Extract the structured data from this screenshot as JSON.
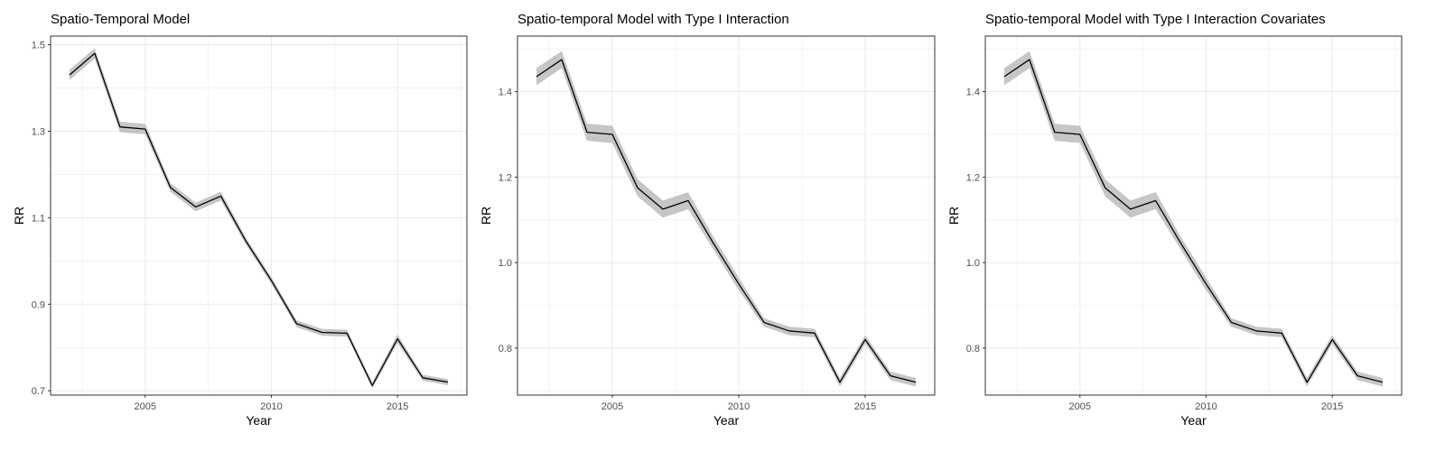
{
  "chart_data": [
    {
      "type": "line",
      "title": "Spatio-Temporal Model",
      "xlabel": "Year",
      "ylabel": "RR",
      "xlim": [
        2001.25,
        2017.75
      ],
      "ylim": [
        0.69,
        1.52
      ],
      "x_ticks": [
        2005,
        2010,
        2015
      ],
      "x_tick_labels": [
        "2005",
        "2010",
        "2015"
      ],
      "y_ticks": [
        0.7,
        0.9,
        1.1,
        1.3,
        1.5
      ],
      "y_tick_labels": [
        "0.7",
        "0.9",
        "1.1",
        "1.3",
        "1.5"
      ],
      "grid": true,
      "x": [
        2002,
        2003,
        2004,
        2005,
        2006,
        2007,
        2008,
        2009,
        2010,
        2011,
        2012,
        2013,
        2014,
        2015,
        2016,
        2017
      ],
      "series": [
        {
          "values": [
            1.43,
            1.48,
            1.31,
            1.305,
            1.17,
            1.125,
            1.15,
            1.045,
            0.955,
            0.855,
            0.835,
            0.833,
            0.712,
            0.82,
            0.73,
            0.72
          ],
          "lower": [
            1.418,
            1.468,
            1.298,
            1.293,
            1.16,
            1.115,
            1.14,
            1.037,
            0.947,
            0.847,
            0.827,
            0.825,
            0.706,
            0.81,
            0.723,
            0.713
          ],
          "upper": [
            1.442,
            1.492,
            1.322,
            1.317,
            1.18,
            1.135,
            1.16,
            1.053,
            0.963,
            0.863,
            0.843,
            0.841,
            0.72,
            0.83,
            0.737,
            0.727
          ]
        }
      ],
      "colors": {
        "line": "#000000",
        "band": "#b3b3b3",
        "grid": "#ebebeb",
        "frame": "#333333"
      }
    },
    {
      "type": "line",
      "title": "Spatio-temporal Model with Type I Interaction",
      "xlabel": "Year",
      "ylabel": "RR",
      "xlim": [
        2001.25,
        2017.75
      ],
      "ylim": [
        0.69,
        1.53
      ],
      "x_ticks": [
        2005,
        2010,
        2015
      ],
      "x_tick_labels": [
        "2005",
        "2010",
        "2015"
      ],
      "y_ticks": [
        0.8,
        1.0,
        1.2,
        1.4
      ],
      "y_tick_labels": [
        "0.8",
        "1.0",
        "1.2",
        "1.4"
      ],
      "grid": true,
      "x": [
        2002,
        2003,
        2004,
        2005,
        2006,
        2007,
        2008,
        2009,
        2010,
        2011,
        2012,
        2013,
        2014,
        2015,
        2016,
        2017
      ],
      "series": [
        {
          "values": [
            1.435,
            1.475,
            1.305,
            1.3,
            1.175,
            1.125,
            1.145,
            1.045,
            0.95,
            0.86,
            0.84,
            0.835,
            0.72,
            0.82,
            0.735,
            0.72
          ],
          "lower": [
            1.415,
            1.455,
            1.285,
            1.28,
            1.155,
            1.105,
            1.125,
            1.03,
            0.935,
            0.85,
            0.83,
            0.825,
            0.71,
            0.81,
            0.725,
            0.71
          ],
          "upper": [
            1.455,
            1.495,
            1.325,
            1.32,
            1.195,
            1.145,
            1.165,
            1.06,
            0.965,
            0.87,
            0.85,
            0.845,
            0.73,
            0.83,
            0.745,
            0.73
          ]
        }
      ],
      "colors": {
        "line": "#000000",
        "band": "#b3b3b3",
        "grid": "#ebebeb",
        "frame": "#333333"
      }
    },
    {
      "type": "line",
      "title": "Spatio-temporal Model with Type I Interaction Covariates",
      "xlabel": "Year",
      "ylabel": "RR",
      "xlim": [
        2001.25,
        2017.75
      ],
      "ylim": [
        0.69,
        1.53
      ],
      "x_ticks": [
        2005,
        2010,
        2015
      ],
      "x_tick_labels": [
        "2005",
        "2010",
        "2015"
      ],
      "y_ticks": [
        0.8,
        1.0,
        1.2,
        1.4
      ],
      "y_tick_labels": [
        "0.8",
        "1.0",
        "1.2",
        "1.4"
      ],
      "grid": true,
      "x": [
        2002,
        2003,
        2004,
        2005,
        2006,
        2007,
        2008,
        2009,
        2010,
        2011,
        2012,
        2013,
        2014,
        2015,
        2016,
        2017
      ],
      "series": [
        {
          "values": [
            1.435,
            1.475,
            1.305,
            1.3,
            1.175,
            1.125,
            1.145,
            1.045,
            0.95,
            0.86,
            0.84,
            0.835,
            0.72,
            0.82,
            0.735,
            0.72
          ],
          "lower": [
            1.415,
            1.455,
            1.285,
            1.28,
            1.155,
            1.105,
            1.125,
            1.03,
            0.935,
            0.85,
            0.83,
            0.825,
            0.71,
            0.81,
            0.725,
            0.71
          ],
          "upper": [
            1.455,
            1.495,
            1.325,
            1.32,
            1.195,
            1.145,
            1.165,
            1.06,
            0.965,
            0.87,
            0.85,
            0.845,
            0.73,
            0.83,
            0.745,
            0.73
          ]
        }
      ],
      "colors": {
        "line": "#000000",
        "band": "#b3b3b3",
        "grid": "#ebebeb",
        "frame": "#333333"
      }
    }
  ]
}
